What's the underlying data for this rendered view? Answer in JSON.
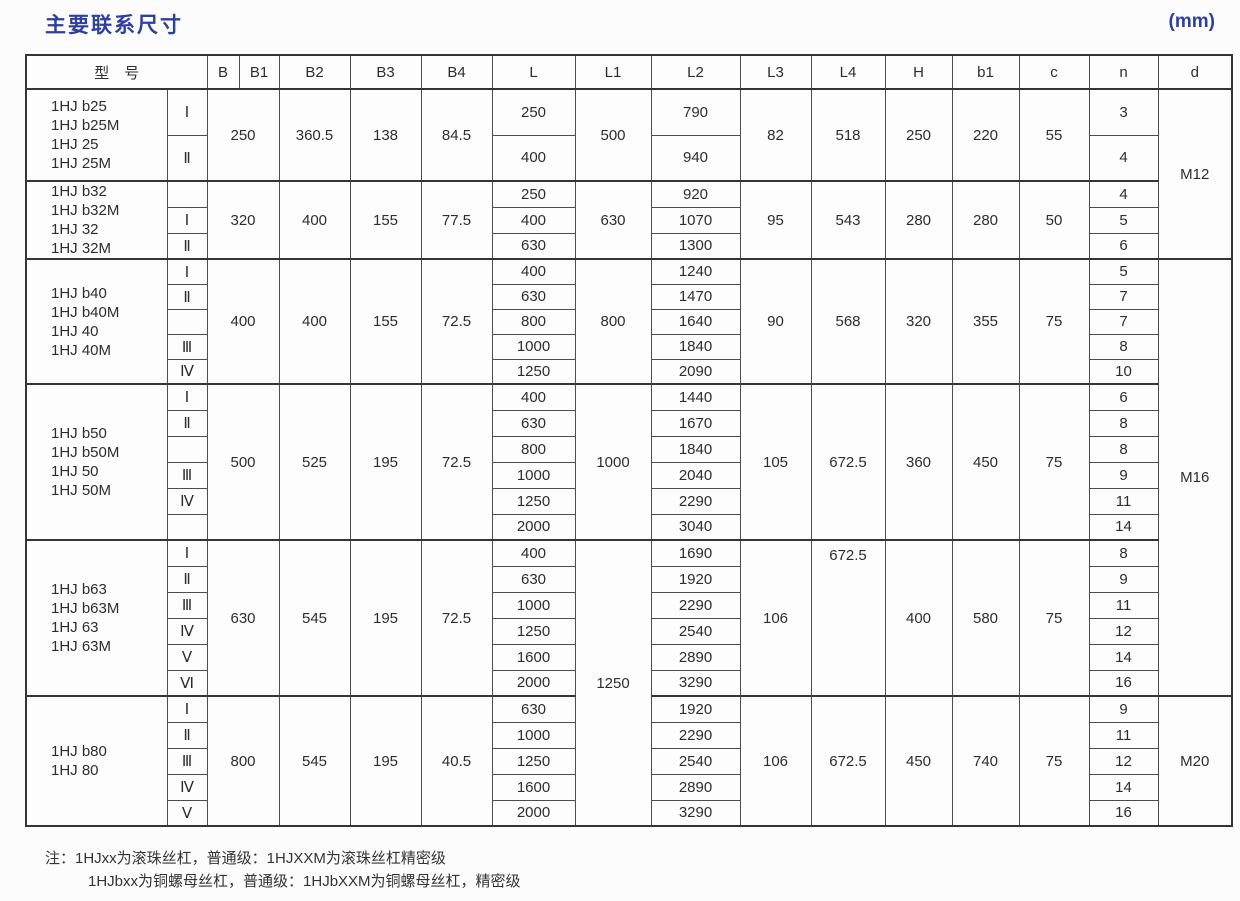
{
  "page": {
    "title": "主要联系尺寸",
    "unit": "(mm)"
  },
  "colors": {
    "accent": "#2e3f9f",
    "border_strong": "#353535",
    "border_light": "#4c4c4c",
    "text": "#2d2d2d"
  },
  "table": {
    "headers": [
      "型　号",
      "B",
      "B1",
      "B2",
      "B3",
      "B4",
      "L",
      "L1",
      "L2",
      "L3",
      "L4",
      "H",
      "b1",
      "c",
      "n",
      "d"
    ],
    "groups": [
      {
        "models": [
          "1HJ b25",
          "1HJ b25M",
          "1HJ 25",
          "1HJ 25M"
        ],
        "B": "250",
        "B2": "360.5",
        "B3": "138",
        "B4": "84.5",
        "L3": "82",
        "L4": "518",
        "H": "250",
        "b1": "220",
        "c": "55",
        "rows": [
          {
            "type": "Ⅰ",
            "L": "250",
            "L2": "790",
            "n": "3"
          },
          {
            "type": "Ⅱ",
            "L": "400",
            "L2": "940",
            "n": "4"
          }
        ]
      },
      {
        "models": [
          "1HJ b32",
          "1HJ b32M",
          "1HJ 32",
          "1HJ 32M"
        ],
        "B": "320",
        "B2": "400",
        "B3": "155",
        "B4": "77.5",
        "L3": "95",
        "L4": "543",
        "H": "280",
        "b1": "280",
        "c": "50",
        "rows": [
          {
            "type": "",
            "L": "250",
            "L2": "920",
            "n": "4"
          },
          {
            "type": "Ⅰ",
            "L": "400",
            "L2": "1070",
            "n": "5"
          },
          {
            "type": "Ⅱ",
            "L": "630",
            "L2": "1300",
            "n": "6"
          }
        ]
      },
      {
        "models": [
          "1HJ b40",
          "1HJ b40M",
          "1HJ 40",
          "1HJ 40M"
        ],
        "B": "400",
        "B2": "400",
        "B3": "155",
        "B4": "72.5",
        "L3": "90",
        "L4": "568",
        "H": "320",
        "b1": "355",
        "c": "75",
        "rows": [
          {
            "type": "Ⅰ",
            "L": "400",
            "L2": "1240",
            "n": "5"
          },
          {
            "type": "Ⅱ",
            "L": "630",
            "L2": "1470",
            "n": "7"
          },
          {
            "type": "",
            "L": "800",
            "L2": "1640",
            "n": "7"
          },
          {
            "type": "Ⅲ",
            "L": "1000",
            "L2": "1840",
            "n": "8"
          },
          {
            "type": "Ⅳ",
            "L": "1250",
            "L2": "2090",
            "n": "10"
          }
        ]
      },
      {
        "models": [
          "1HJ b50",
          "1HJ b50M",
          "1HJ 50",
          "1HJ 50M"
        ],
        "B": "500",
        "B2": "525",
        "B3": "195",
        "B4": "72.5",
        "L3": "105",
        "L4": "672.5",
        "H": "360",
        "b1": "450",
        "c": "75",
        "rows": [
          {
            "type": "Ⅰ",
            "L": "400",
            "L2": "1440",
            "n": "6"
          },
          {
            "type": "Ⅱ",
            "L": "630",
            "L2": "1670",
            "n": "8"
          },
          {
            "type": "",
            "L": "800",
            "L2": "1840",
            "n": "8"
          },
          {
            "type": "Ⅲ",
            "L": "1000",
            "L2": "2040",
            "n": "9"
          },
          {
            "type": "Ⅳ",
            "L": "1250",
            "L2": "2290",
            "n": "11"
          },
          {
            "type": "",
            "L": "2000",
            "L2": "3040",
            "n": "14"
          }
        ]
      },
      {
        "models": [
          "1HJ b63",
          "1HJ b63M",
          "1HJ 63",
          "1HJ 63M"
        ],
        "B": "630",
        "B2": "545",
        "B3": "195",
        "B4": "72.5",
        "L3": "106",
        "L4": "672.5",
        "H": "400",
        "b1": "580",
        "c": "75",
        "rows": [
          {
            "type": "Ⅰ",
            "L": "400",
            "L2": "1690",
            "n": "8"
          },
          {
            "type": "Ⅱ",
            "L": "630",
            "L2": "1920",
            "n": "9"
          },
          {
            "type": "Ⅲ",
            "L": "1000",
            "L2": "2290",
            "n": "11"
          },
          {
            "type": "Ⅳ",
            "L": "1250",
            "L2": "2540",
            "n": "12"
          },
          {
            "type": "Ⅴ",
            "L": "1600",
            "L2": "2890",
            "n": "14"
          },
          {
            "type": "Ⅵ",
            "L": "2000",
            "L2": "3290",
            "n": "16"
          }
        ]
      },
      {
        "models": [
          "1HJ b80",
          "1HJ 80"
        ],
        "B": "800",
        "B2": "545",
        "B3": "195",
        "B4": "40.5",
        "L3": "106",
        "L4": "672.5",
        "H": "450",
        "b1": "740",
        "c": "75",
        "rows": [
          {
            "type": "Ⅰ",
            "L": "630",
            "L2": "1920",
            "n": "9"
          },
          {
            "type": "Ⅱ",
            "L": "1000",
            "L2": "2290",
            "n": "11"
          },
          {
            "type": "Ⅲ",
            "L": "1250",
            "L2": "2540",
            "n": "12"
          },
          {
            "type": "Ⅳ",
            "L": "1600",
            "L2": "2890",
            "n": "14"
          },
          {
            "type": "Ⅴ",
            "L": "2000",
            "L2": "3290",
            "n": "16"
          }
        ]
      }
    ],
    "L1_spans": [
      {
        "value": "500",
        "start": 0,
        "count": 1
      },
      {
        "value": "630",
        "start": 1,
        "count": 1
      },
      {
        "value": "800",
        "start": 2,
        "count": 1
      },
      {
        "value": "1000",
        "start": 3,
        "count": 1
      },
      {
        "value": "1250",
        "start": 4,
        "count": 2
      }
    ],
    "d_spans": [
      {
        "value": "M12",
        "start": 0,
        "count": 2
      },
      {
        "value": "M16",
        "start": 2,
        "count": 3
      },
      {
        "value": "M20",
        "start": 5,
        "count": 1
      }
    ]
  },
  "notes": [
    "注：1HJxx为滚珠丝杠，普通级：1HJXXM为滚珠丝杠精密级",
    "1HJbxx为铜螺母丝杠，普通级：1HJbXXM为铜螺母丝杠，精密级"
  ]
}
